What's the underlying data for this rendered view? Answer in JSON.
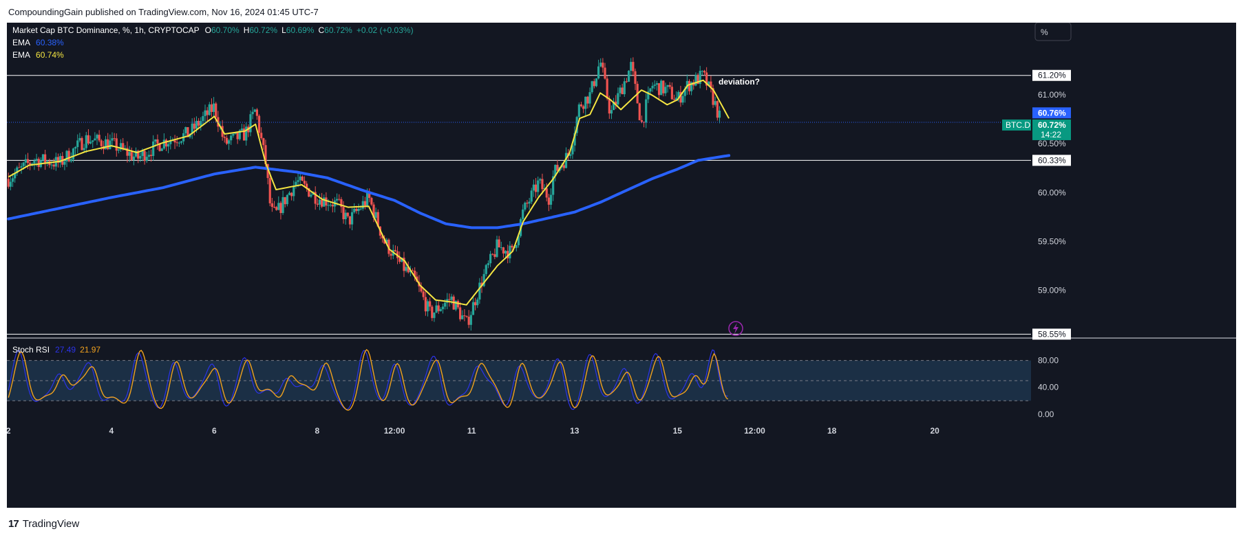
{
  "header": {
    "publisher_text": "CompoundingGain published on TradingView.com, Nov 16, 2024 01:45 UTC-7"
  },
  "footer": {
    "brand": "TradingView",
    "brand_logo": "17"
  },
  "legend": {
    "symbol": "Market Cap BTC Dominance, %, 1h, CRYPTOCAP",
    "o_label": "O",
    "o_value": "60.70%",
    "h_label": "H",
    "h_value": "60.72%",
    "l_label": "L",
    "l_value": "60.69%",
    "c_label": "C",
    "c_value": "60.72%",
    "change": "+0.02 (+0.03%)",
    "ema1_label": "EMA",
    "ema1_value": "60.38%",
    "ema2_label": "EMA",
    "ema2_value": "60.74%"
  },
  "scale_button": "%",
  "price_tags": {
    "symbol_tag": "BTC.D",
    "last_price": "60.72%",
    "countdown": "14:22",
    "ema_fast_tag": "60.76%",
    "level_upper": "61.20%",
    "level_mid": "60.33%",
    "level_low": "58.55%"
  },
  "annotation": "deviation?",
  "stoch": {
    "label": "Stoch RSI",
    "k_value": "27.49",
    "d_value": "21.97"
  },
  "colors": {
    "background": "#131722",
    "up": "#26a69a",
    "down": "#ef5350",
    "ema_slow": "#2962ff",
    "ema_fast": "#f5e642",
    "k_line": "#2c33e8",
    "d_line": "#f0a11e",
    "stoch_band": "#1b2f45",
    "current_price": "#089981",
    "ema_fast_tag_bg": "#2962ff"
  },
  "chart_data": {
    "type": "candlestick",
    "title": "Market Cap BTC Dominance, %, 1h, CRYPTOCAP",
    "x_ticks": [
      {
        "label": "2",
        "pos": 0.0
      },
      {
        "label": "4",
        "pos": 2.0
      },
      {
        "label": "6",
        "pos": 4.0
      },
      {
        "label": "8",
        "pos": 6.0
      },
      {
        "label": "12:00",
        "pos": 7.5
      },
      {
        "label": "11",
        "pos": 9.0
      },
      {
        "label": "13",
        "pos": 11.0
      },
      {
        "label": "15",
        "pos": 13.0
      },
      {
        "label": "12:00",
        "pos": 14.5
      },
      {
        "label": "18",
        "pos": 16.0
      },
      {
        "label": "20",
        "pos": 18.0
      }
    ],
    "x_range": [
      -0.03,
      19.87
    ],
    "y_ticks": [
      {
        "label": "61.00%",
        "value": 61.0
      },
      {
        "label": "60.50%",
        "value": 60.5
      },
      {
        "label": "60.00%",
        "value": 60.0
      },
      {
        "label": "59.50%",
        "value": 59.5
      },
      {
        "label": "59.00%",
        "value": 59.0
      }
    ],
    "y_range": [
      58.51,
      61.74
    ],
    "horizontal_levels": [
      61.2,
      60.33,
      58.55
    ],
    "current_price": 60.72,
    "ema_slow_keypoints": [
      [
        0.0,
        59.73
      ],
      [
        1.0,
        59.84
      ],
      [
        2.0,
        59.95
      ],
      [
        3.0,
        60.05
      ],
      [
        4.0,
        60.19
      ],
      [
        4.8,
        60.26
      ],
      [
        5.6,
        60.21
      ],
      [
        6.2,
        60.15
      ],
      [
        6.9,
        60.02
      ],
      [
        7.5,
        59.92
      ],
      [
        8.0,
        59.79
      ],
      [
        8.5,
        59.68
      ],
      [
        9.0,
        59.64
      ],
      [
        9.5,
        59.64
      ],
      [
        10.0,
        59.68
      ],
      [
        10.5,
        59.74
      ],
      [
        11.0,
        59.8
      ],
      [
        11.5,
        59.9
      ],
      [
        12.0,
        60.02
      ],
      [
        12.5,
        60.14
      ],
      [
        13.0,
        60.24
      ],
      [
        13.4,
        60.33
      ],
      [
        14.0,
        60.38
      ]
    ],
    "ema_fast_keypoints": [
      [
        0.0,
        60.16
      ],
      [
        0.4,
        60.28
      ],
      [
        1.0,
        60.32
      ],
      [
        1.5,
        60.42
      ],
      [
        2.0,
        60.48
      ],
      [
        2.5,
        60.41
      ],
      [
        3.0,
        60.51
      ],
      [
        3.5,
        60.58
      ],
      [
        4.0,
        60.78
      ],
      [
        4.2,
        60.6
      ],
      [
        4.6,
        60.63
      ],
      [
        4.8,
        60.7
      ],
      [
        5.0,
        60.3
      ],
      [
        5.2,
        60.03
      ],
      [
        5.7,
        60.08
      ],
      [
        6.1,
        59.93
      ],
      [
        6.6,
        59.85
      ],
      [
        7.0,
        59.86
      ],
      [
        7.4,
        59.42
      ],
      [
        7.7,
        59.3
      ],
      [
        8.0,
        59.05
      ],
      [
        8.3,
        58.9
      ],
      [
        8.6,
        58.88
      ],
      [
        8.9,
        58.85
      ],
      [
        9.2,
        59.05
      ],
      [
        9.5,
        59.25
      ],
      [
        9.8,
        59.4
      ],
      [
        10.0,
        59.7
      ],
      [
        10.3,
        59.95
      ],
      [
        10.6,
        60.15
      ],
      [
        10.9,
        60.4
      ],
      [
        11.1,
        60.76
      ],
      [
        11.3,
        60.8
      ],
      [
        11.5,
        61.02
      ],
      [
        11.7,
        60.95
      ],
      [
        11.9,
        60.85
      ],
      [
        12.1,
        60.95
      ],
      [
        12.3,
        61.05
      ],
      [
        12.5,
        61.0
      ],
      [
        12.8,
        60.9
      ],
      [
        13.0,
        60.95
      ],
      [
        13.2,
        61.1
      ],
      [
        13.5,
        61.15
      ],
      [
        13.7,
        61.05
      ],
      [
        14.0,
        60.76
      ]
    ],
    "candle_path": [
      [
        0.0,
        60.14
      ],
      [
        0.5,
        60.34
      ],
      [
        1.0,
        60.3
      ],
      [
        1.5,
        60.55
      ],
      [
        2.0,
        60.5
      ],
      [
        2.5,
        60.35
      ],
      [
        3.0,
        60.52
      ],
      [
        3.5,
        60.6
      ],
      [
        4.0,
        60.88
      ],
      [
        4.2,
        60.5
      ],
      [
        4.6,
        60.6
      ],
      [
        4.8,
        60.85
      ],
      [
        5.0,
        60.3
      ],
      [
        5.1,
        59.8
      ],
      [
        5.2,
        59.78
      ],
      [
        5.6,
        60.12
      ],
      [
        6.0,
        59.95
      ],
      [
        6.4,
        59.88
      ],
      [
        6.6,
        59.7
      ],
      [
        7.0,
        59.95
      ],
      [
        7.3,
        59.5
      ],
      [
        7.6,
        59.28
      ],
      [
        7.9,
        59.1
      ],
      [
        8.2,
        58.75
      ],
      [
        8.6,
        58.92
      ],
      [
        8.9,
        58.65
      ],
      [
        9.2,
        59.1
      ],
      [
        9.5,
        59.45
      ],
      [
        9.8,
        59.38
      ],
      [
        10.0,
        59.8
      ],
      [
        10.3,
        60.1
      ],
      [
        10.5,
        59.95
      ],
      [
        10.6,
        60.2
      ],
      [
        10.9,
        60.4
      ],
      [
        11.1,
        60.9
      ],
      [
        11.3,
        61.0
      ],
      [
        11.5,
        61.35
      ],
      [
        11.7,
        60.8
      ],
      [
        11.9,
        61.05
      ],
      [
        12.1,
        61.3
      ],
      [
        12.3,
        60.7
      ],
      [
        12.5,
        61.1
      ],
      [
        12.8,
        61.05
      ],
      [
        13.0,
        60.95
      ],
      [
        13.2,
        61.1
      ],
      [
        13.5,
        61.2
      ],
      [
        13.7,
        60.95
      ],
      [
        13.85,
        60.72
      ]
    ],
    "stoch_rsi": {
      "k_label": "Stoch RSI",
      "k_last": 27.49,
      "d_last": 21.97,
      "y_range": [
        -10.48,
        113.44
      ],
      "y_ticks": [
        {
          "label": "80.00",
          "value": 80
        },
        {
          "label": "40.00",
          "value": 40
        },
        {
          "label": "0.00",
          "value": 0
        }
      ],
      "bands": [
        20,
        50,
        80
      ],
      "cycle_centers": [
        0.2,
        1.0,
        1.6,
        2.5,
        3.2,
        4.0,
        4.6,
        5.4,
        6.1,
        6.9,
        7.5,
        8.3,
        9.1,
        9.9,
        10.7,
        11.3,
        12.0,
        12.6,
        13.3,
        13.7
      ]
    }
  }
}
